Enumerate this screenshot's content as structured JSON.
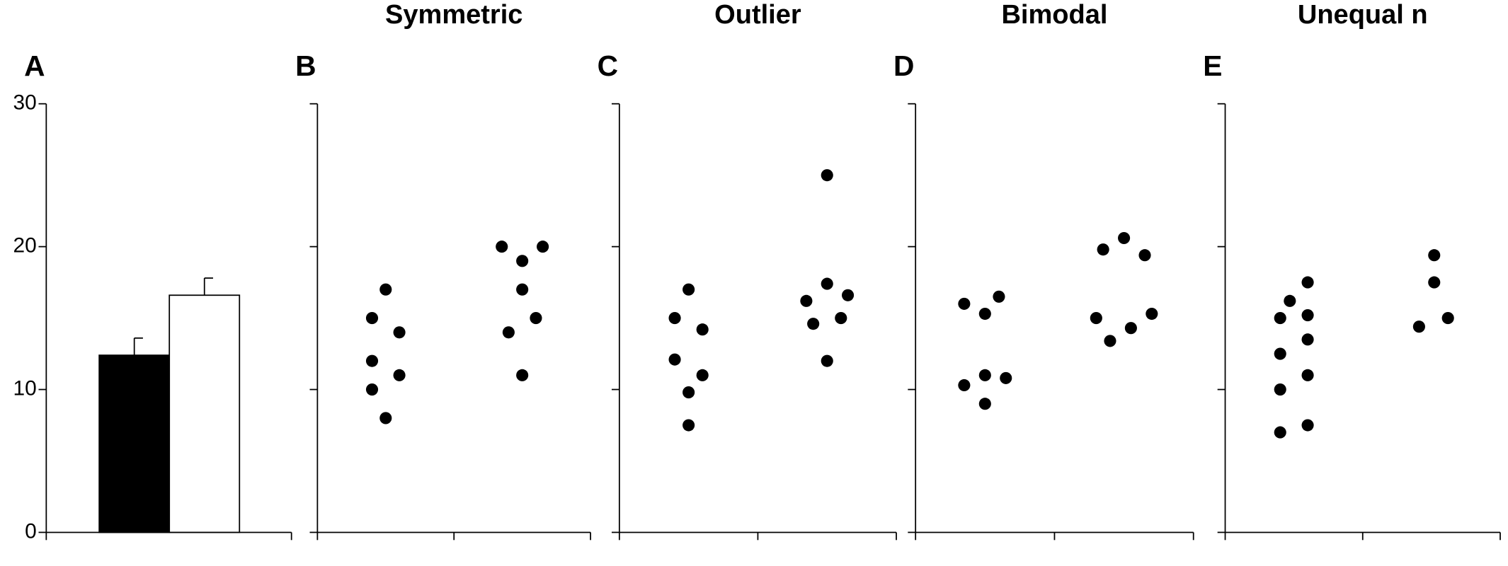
{
  "chart_data": [
    {
      "type": "bar",
      "panel_label": "A",
      "categories": [
        null,
        null
      ],
      "values": [
        12.4,
        16.6
      ],
      "errors": [
        1.2,
        1.2
      ],
      "colors": [
        "#000000",
        "#ffffff"
      ],
      "ylim": [
        0,
        30
      ],
      "yticks": [
        0,
        10,
        20,
        30
      ],
      "tick_labels": true
    },
    {
      "type": "scatter",
      "panel_label": "B",
      "title": "Symmetric",
      "x": [
        0.5,
        0.4,
        0.6,
        0.4,
        0.6,
        0.4,
        0.5,
        1.35,
        1.5,
        1.65,
        1.5,
        1.6,
        1.4,
        1.5
      ],
      "values": [
        17,
        15,
        14,
        12,
        11,
        10,
        8,
        20,
        19,
        20,
        17,
        15,
        14,
        11
      ],
      "color": "#000000",
      "xlim": [
        0,
        2
      ],
      "xticks": [
        0,
        1,
        2
      ],
      "ylim": [
        0,
        30
      ],
      "yticks": [
        0,
        10,
        20,
        30
      ],
      "tick_labels": false
    },
    {
      "type": "scatter",
      "panel_label": "C",
      "title": "Outlier",
      "x": [
        0.5,
        0.4,
        0.6,
        0.4,
        0.6,
        0.5,
        0.5,
        1.5,
        1.35,
        1.5,
        1.65,
        1.4,
        1.6,
        1.5
      ],
      "values": [
        17,
        15,
        14.2,
        12.1,
        11,
        9.8,
        7.5,
        25,
        16.2,
        17.4,
        16.6,
        14.6,
        15,
        12
      ],
      "color": "#000000",
      "xlim": [
        0,
        2
      ],
      "xticks": [
        0,
        1,
        2
      ],
      "ylim": [
        0,
        30
      ],
      "yticks": [
        0,
        10,
        20,
        30
      ],
      "tick_labels": false
    },
    {
      "type": "scatter",
      "panel_label": "D",
      "title": "Bimodal",
      "x": [
        0.35,
        0.5,
        0.6,
        0.35,
        0.5,
        0.65,
        0.5,
        1.35,
        1.5,
        1.65,
        1.3,
        1.4,
        1.55,
        1.7
      ],
      "values": [
        16,
        15.3,
        16.5,
        10.3,
        11,
        10.8,
        9,
        19.8,
        20.6,
        19.4,
        15,
        13.4,
        14.3,
        15.3
      ],
      "color": "#000000",
      "xlim": [
        0,
        2
      ],
      "xticks": [
        0,
        1,
        2
      ],
      "ylim": [
        0,
        30
      ],
      "yticks": [
        0,
        10,
        20,
        30
      ],
      "tick_labels": false
    },
    {
      "type": "scatter",
      "panel_label": "E",
      "title": "Unequal n",
      "x": [
        0.4,
        0.47,
        0.6,
        0.6,
        0.6,
        0.4,
        0.4,
        0.6,
        0.4,
        0.6,
        1.52,
        1.52,
        1.41,
        1.62
      ],
      "values": [
        15,
        16.2,
        17.5,
        15.2,
        13.5,
        12.5,
        10,
        11,
        7,
        7.5,
        19.4,
        17.5,
        14.4,
        15
      ],
      "color": "#000000",
      "xlim": [
        0,
        2
      ],
      "xticks": [
        0,
        1,
        2
      ],
      "ylim": [
        0,
        30
      ],
      "yticks": [
        0,
        10,
        20,
        30
      ],
      "tick_labels": false
    }
  ]
}
